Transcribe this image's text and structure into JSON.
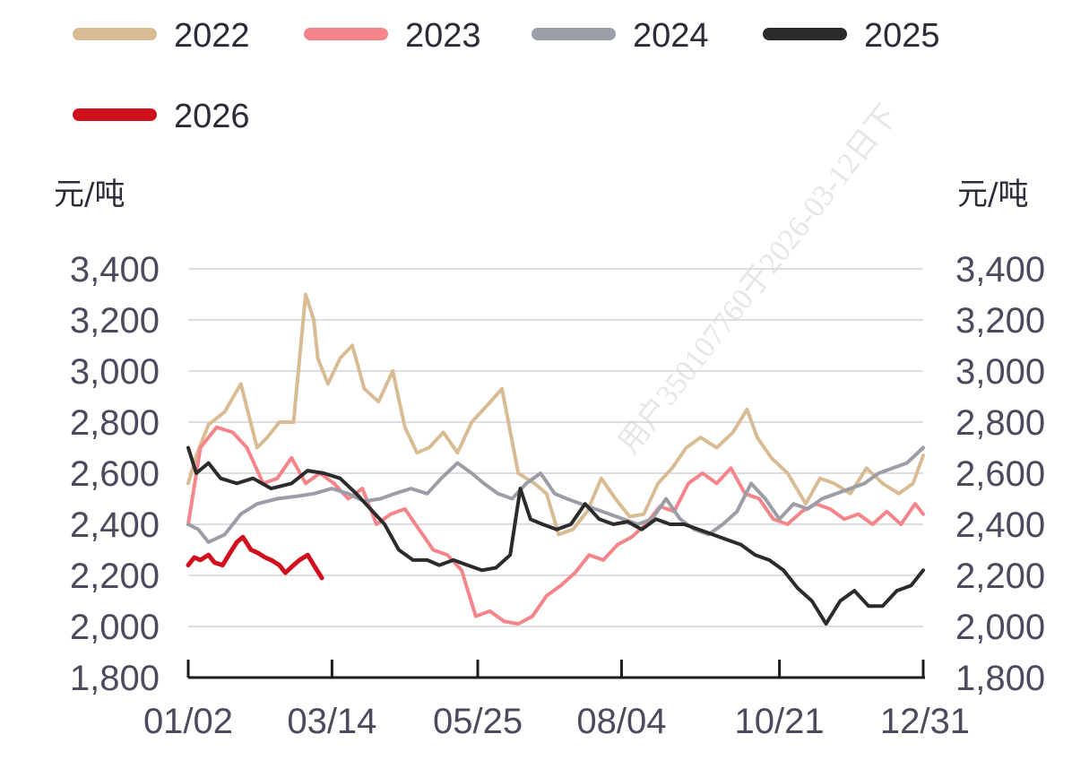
{
  "watermark": "用户350107760于2026-03-12日下",
  "chart_data": {
    "type": "line",
    "ylabel_left": "元/吨",
    "ylabel_right": "元/吨",
    "ylim": [
      1800,
      3400
    ],
    "y_ticks": [
      1800,
      2000,
      2200,
      2400,
      2600,
      2800,
      3000,
      3200,
      3400
    ],
    "y_tick_labels": [
      "1,800",
      "2,000",
      "2,200",
      "2,400",
      "2,600",
      "2,800",
      "3,000",
      "3,200",
      "3,400"
    ],
    "x_ticks": [
      "01/02",
      "03/14",
      "05/25",
      "08/04",
      "10/21",
      "12/31"
    ],
    "grid": true,
    "legend_position": "top",
    "series": [
      {
        "name": "2022",
        "color": "#d8bc94",
        "x": [
          "01/02",
          "01/06",
          "01/12",
          "01/20",
          "01/28",
          "02/05",
          "02/10",
          "02/16",
          "02/23",
          "03/01",
          "03/05",
          "03/07",
          "03/12",
          "03/18",
          "03/24",
          "03/30",
          "04/06",
          "04/13",
          "04/19",
          "04/25",
          "05/01",
          "05/08",
          "05/15",
          "05/22",
          "05/29",
          "06/06",
          "06/14",
          "06/22",
          "06/28",
          "07/04",
          "07/11",
          "07/18",
          "07/25",
          "08/01",
          "08/08",
          "08/15",
          "08/22",
          "08/29",
          "09/05",
          "09/12",
          "09/20",
          "09/28",
          "10/05",
          "10/10",
          "10/17",
          "10/25",
          "11/03",
          "11/10",
          "11/17",
          "11/25",
          "12/03",
          "12/11",
          "12/19",
          "12/26",
          "12/31"
        ],
        "values": [
          2560,
          2670,
          2790,
          2840,
          2950,
          2700,
          2740,
          2800,
          2800,
          3300,
          3200,
          3050,
          2950,
          3050,
          3100,
          2930,
          2880,
          3000,
          2780,
          2680,
          2700,
          2760,
          2680,
          2800,
          2860,
          2930,
          2600,
          2560,
          2520,
          2360,
          2380,
          2450,
          2580,
          2500,
          2430,
          2440,
          2560,
          2620,
          2700,
          2740,
          2700,
          2760,
          2850,
          2740,
          2660,
          2600,
          2480,
          2580,
          2560,
          2520,
          2620,
          2560,
          2520,
          2560,
          2670
        ]
      },
      {
        "name": "2023",
        "color": "#f4858a",
        "x": [
          "01/02",
          "01/08",
          "01/16",
          "01/24",
          "01/31",
          "02/08",
          "02/15",
          "02/22",
          "03/01",
          "03/08",
          "03/15",
          "03/22",
          "03/29",
          "04/05",
          "04/12",
          "04/19",
          "04/26",
          "05/03",
          "05/10",
          "05/17",
          "05/24",
          "05/31",
          "06/07",
          "06/14",
          "06/21",
          "06/28",
          "07/05",
          "07/12",
          "07/19",
          "07/26",
          "08/02",
          "08/09",
          "08/16",
          "08/23",
          "08/30",
          "09/06",
          "09/13",
          "09/20",
          "09/27",
          "10/04",
          "10/11",
          "10/18",
          "10/25",
          "11/01",
          "11/08",
          "11/15",
          "11/22",
          "11/29",
          "12/06",
          "12/13",
          "12/20",
          "12/27",
          "12/31"
        ],
        "values": [
          2400,
          2700,
          2780,
          2760,
          2700,
          2560,
          2580,
          2660,
          2560,
          2600,
          2560,
          2500,
          2540,
          2400,
          2440,
          2460,
          2380,
          2300,
          2280,
          2220,
          2040,
          2060,
          2020,
          2010,
          2040,
          2120,
          2160,
          2210,
          2280,
          2260,
          2320,
          2350,
          2400,
          2470,
          2450,
          2560,
          2600,
          2560,
          2620,
          2520,
          2500,
          2420,
          2400,
          2450,
          2480,
          2460,
          2420,
          2440,
          2400,
          2450,
          2400,
          2480,
          2440
        ]
      },
      {
        "name": "2024",
        "color": "#9b9ea6",
        "x": [
          "01/02",
          "01/07",
          "01/12",
          "01/20",
          "01/28",
          "02/05",
          "02/15",
          "02/25",
          "03/05",
          "03/14",
          "03/22",
          "03/30",
          "04/07",
          "04/14",
          "04/22",
          "04/30",
          "05/07",
          "05/15",
          "05/22",
          "05/28",
          "06/04",
          "06/11",
          "06/18",
          "06/25",
          "07/02",
          "07/08",
          "07/15",
          "07/22",
          "07/29",
          "08/05",
          "08/12",
          "08/19",
          "08/26",
          "09/02",
          "09/09",
          "09/16",
          "09/23",
          "09/30",
          "10/07",
          "10/14",
          "10/21",
          "10/28",
          "11/04",
          "11/11",
          "11/18",
          "11/25",
          "12/02",
          "12/09",
          "12/16",
          "12/23",
          "12/31"
        ],
        "values": [
          2400,
          2380,
          2330,
          2360,
          2440,
          2480,
          2500,
          2510,
          2520,
          2540,
          2520,
          2490,
          2500,
          2520,
          2540,
          2520,
          2580,
          2640,
          2600,
          2560,
          2520,
          2500,
          2560,
          2600,
          2520,
          2500,
          2480,
          2460,
          2440,
          2420,
          2400,
          2420,
          2500,
          2420,
          2380,
          2360,
          2400,
          2450,
          2560,
          2500,
          2420,
          2480,
          2460,
          2500,
          2520,
          2540,
          2560,
          2600,
          2620,
          2640,
          2700
        ]
      },
      {
        "name": "2025",
        "color": "#2b2b2b",
        "x": [
          "01/02",
          "01/06",
          "01/12",
          "01/18",
          "01/26",
          "02/03",
          "02/12",
          "02/22",
          "03/02",
          "03/10",
          "03/18",
          "03/26",
          "04/02",
          "04/09",
          "04/16",
          "04/23",
          "04/30",
          "05/06",
          "05/13",
          "05/20",
          "05/27",
          "06/03",
          "06/10",
          "06/15",
          "06/20",
          "06/26",
          "07/03",
          "07/10",
          "07/17",
          "07/24",
          "07/31",
          "08/07",
          "08/14",
          "08/21",
          "08/28",
          "09/04",
          "09/11",
          "09/18",
          "09/25",
          "10/02",
          "10/09",
          "10/16",
          "10/23",
          "10/30",
          "11/06",
          "11/13",
          "11/20",
          "11/27",
          "12/04",
          "12/11",
          "12/18",
          "12/25",
          "12/31"
        ],
        "values": [
          2700,
          2600,
          2640,
          2580,
          2560,
          2580,
          2540,
          2560,
          2610,
          2600,
          2580,
          2520,
          2460,
          2400,
          2300,
          2260,
          2260,
          2240,
          2260,
          2240,
          2220,
          2230,
          2280,
          2540,
          2420,
          2400,
          2380,
          2400,
          2480,
          2420,
          2400,
          2410,
          2380,
          2420,
          2400,
          2400,
          2380,
          2360,
          2340,
          2320,
          2280,
          2260,
          2220,
          2150,
          2100,
          2010,
          2100,
          2140,
          2080,
          2080,
          2140,
          2160,
          2220
        ]
      },
      {
        "name": "2026",
        "color": "#d0101f",
        "x": [
          "01/02",
          "01/05",
          "01/08",
          "01/12",
          "01/15",
          "01/19",
          "01/22",
          "01/26",
          "01/29",
          "02/02",
          "02/05",
          "02/09",
          "02/12",
          "02/16",
          "02/19",
          "02/23",
          "02/26",
          "03/02",
          "03/05",
          "03/09"
        ],
        "values": [
          2240,
          2270,
          2260,
          2280,
          2250,
          2240,
          2280,
          2330,
          2350,
          2300,
          2290,
          2270,
          2260,
          2240,
          2210,
          2240,
          2260,
          2280,
          2240,
          2190
        ]
      }
    ]
  }
}
